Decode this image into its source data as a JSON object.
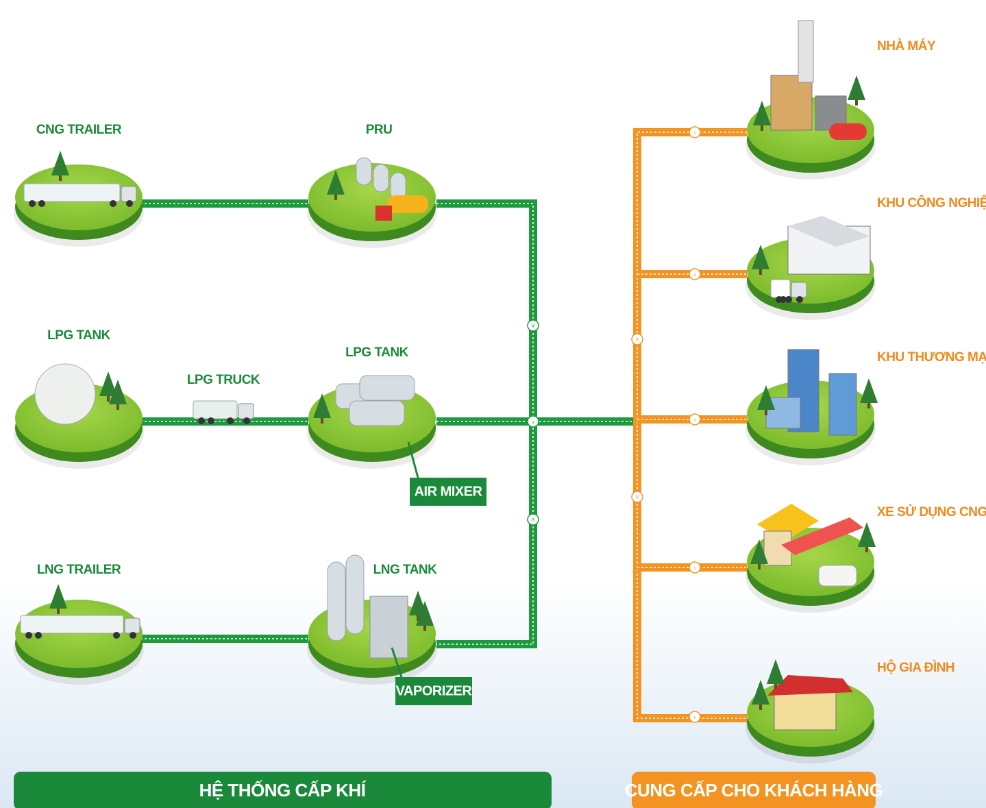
{
  "sources": [
    {
      "label": "CNG TRAILER"
    },
    {
      "label": "PRU"
    },
    {
      "label": "LPG TANK"
    },
    {
      "label": "LPG TRUCK"
    },
    {
      "label": "LPG TANK"
    },
    {
      "label": "AIR MIXER"
    },
    {
      "label": "LNG TRAILER"
    },
    {
      "label": "LNG TANK"
    },
    {
      "label": "VAPORIZER"
    }
  ],
  "customers": [
    {
      "label": "NHÀ MÁY"
    },
    {
      "label": "KHU CÔNG NGHIỆP"
    },
    {
      "label": "KHU THƯƠNG MẠI"
    },
    {
      "label": "XE SỬ DỤNG CNG"
    },
    {
      "label": "HỘ GIA ĐÌNH"
    }
  ],
  "footer": {
    "left": "HỆ THỐNG CẤP KHÍ",
    "right": "CUNG CẤP CHO KHÁCH HÀNG"
  }
}
